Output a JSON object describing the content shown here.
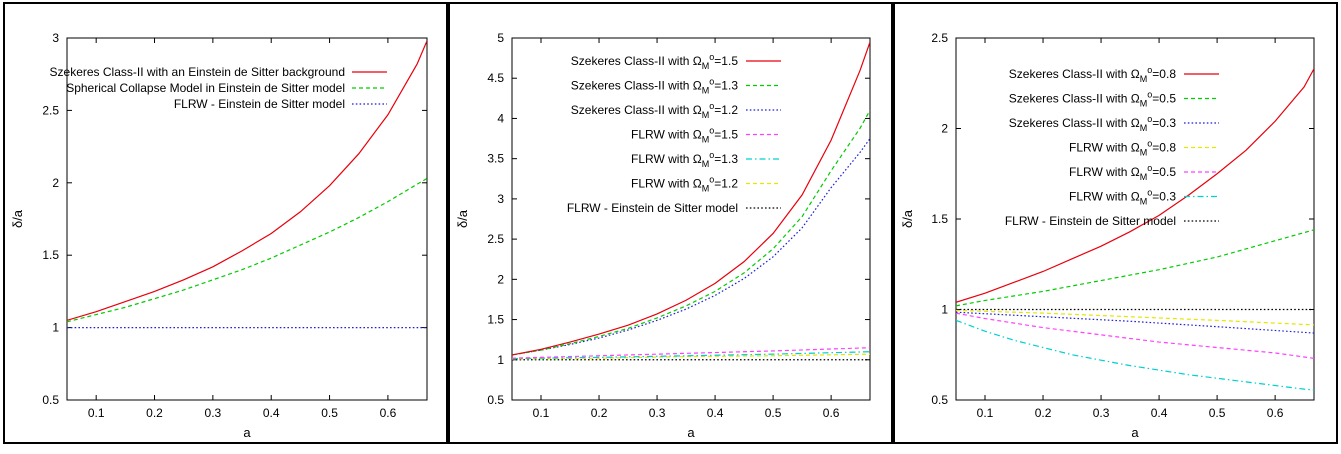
{
  "chart_data": [
    {
      "type": "line",
      "xlabel": "a",
      "ylabel": "δ/a",
      "xlim": [
        0.05,
        0.667
      ],
      "ylim": [
        0.5,
        3
      ],
      "xticks": [
        "0.1",
        "0.2",
        "0.3",
        "0.4",
        "0.5",
        "0.6"
      ],
      "yticks": [
        "0.5",
        "1",
        "1.5",
        "2",
        "2.5",
        "3"
      ],
      "legend_position": "top-right",
      "series": [
        {
          "name": "Szekeres Class-II with an Einstein de Sitter background",
          "color": "#e8000b",
          "dash": "solid",
          "x": [
            0.05,
            0.1,
            0.15,
            0.2,
            0.25,
            0.3,
            0.35,
            0.4,
            0.45,
            0.5,
            0.55,
            0.6,
            0.65,
            0.667
          ],
          "y": [
            1.05,
            1.11,
            1.18,
            1.25,
            1.33,
            1.42,
            1.53,
            1.65,
            1.8,
            1.98,
            2.2,
            2.47,
            2.82,
            2.98
          ]
        },
        {
          "name": "Spherical Collapse Model in Einstein de Sitter model",
          "color": "#00cc00",
          "dash": "dash",
          "x": [
            0.05,
            0.1,
            0.15,
            0.2,
            0.25,
            0.3,
            0.35,
            0.4,
            0.45,
            0.5,
            0.55,
            0.6,
            0.65,
            0.667
          ],
          "y": [
            1.04,
            1.09,
            1.14,
            1.2,
            1.26,
            1.33,
            1.4,
            1.48,
            1.57,
            1.66,
            1.76,
            1.87,
            1.99,
            2.03
          ]
        },
        {
          "name": "FLRW - Einstein de Sitter model",
          "color": "#1f1fd6",
          "dash": "dot",
          "x": [
            0.05,
            0.667
          ],
          "y": [
            1.0,
            1.0
          ]
        }
      ]
    },
    {
      "type": "line",
      "xlabel": "a",
      "ylabel": "δ/a",
      "xlim": [
        0.05,
        0.667
      ],
      "ylim": [
        0.5,
        5
      ],
      "xticks": [
        "0.1",
        "0.2",
        "0.3",
        "0.4",
        "0.5",
        "0.6"
      ],
      "yticks": [
        "0.5",
        "1",
        "1.5",
        "2",
        "2.5",
        "3",
        "3.5",
        "4",
        "4.5",
        "5"
      ],
      "legend_position": "top-right",
      "series": [
        {
          "name": "Szekeres Class-II with Ω_M^o=1.5",
          "color": "#e8000b",
          "dash": "solid",
          "x": [
            0.05,
            0.1,
            0.15,
            0.2,
            0.25,
            0.3,
            0.35,
            0.4,
            0.45,
            0.5,
            0.55,
            0.6,
            0.65,
            0.667
          ],
          "y": [
            1.06,
            1.13,
            1.22,
            1.32,
            1.43,
            1.57,
            1.74,
            1.95,
            2.22,
            2.57,
            3.05,
            3.73,
            4.6,
            4.95
          ]
        },
        {
          "name": "Szekeres Class-II with Ω_M^o=1.3",
          "color": "#00cc00",
          "dash": "dash",
          "x": [
            0.05,
            0.1,
            0.15,
            0.2,
            0.25,
            0.3,
            0.35,
            0.4,
            0.45,
            0.5,
            0.55,
            0.6,
            0.65,
            0.667
          ],
          "y": [
            1.06,
            1.12,
            1.2,
            1.29,
            1.39,
            1.52,
            1.67,
            1.85,
            2.08,
            2.38,
            2.78,
            3.35,
            3.88,
            4.1
          ]
        },
        {
          "name": "Szekeres Class-II with Ω_M^o=1.2",
          "color": "#1f1fd6",
          "dash": "dot",
          "x": [
            0.05,
            0.1,
            0.15,
            0.2,
            0.25,
            0.3,
            0.35,
            0.4,
            0.45,
            0.5,
            0.55,
            0.6,
            0.65,
            0.667
          ],
          "y": [
            1.06,
            1.12,
            1.19,
            1.27,
            1.37,
            1.49,
            1.63,
            1.8,
            2.01,
            2.28,
            2.64,
            3.14,
            3.58,
            3.75
          ]
        },
        {
          "name": "FLRW with Ω_M^o=1.5",
          "color": "#ff40ff",
          "dash": "dash",
          "x": [
            0.05,
            0.2,
            0.35,
            0.5,
            0.667
          ],
          "y": [
            1.02,
            1.05,
            1.08,
            1.11,
            1.15
          ]
        },
        {
          "name": "FLRW with Ω_M^o=1.3",
          "color": "#00d0d0",
          "dash": "dashdot",
          "x": [
            0.05,
            0.2,
            0.35,
            0.5,
            0.667
          ],
          "y": [
            1.015,
            1.03,
            1.05,
            1.07,
            1.1
          ]
        },
        {
          "name": "FLRW with Ω_M^o=1.2",
          "color": "#e6e600",
          "dash": "dash",
          "x": [
            0.05,
            0.2,
            0.35,
            0.5,
            0.667
          ],
          "y": [
            1.01,
            1.02,
            1.04,
            1.05,
            1.07
          ]
        },
        {
          "name": "FLRW - Einstein de Sitter model",
          "color": "#000000",
          "dash": "dot",
          "x": [
            0.05,
            0.667
          ],
          "y": [
            1.0,
            1.0
          ]
        }
      ]
    },
    {
      "type": "line",
      "xlabel": "a",
      "ylabel": "δ/a",
      "xlim": [
        0.05,
        0.667
      ],
      "ylim": [
        0.5,
        2.5
      ],
      "xticks": [
        "0.1",
        "0.2",
        "0.3",
        "0.4",
        "0.5",
        "0.6"
      ],
      "yticks": [
        "0.5",
        "1",
        "1.5",
        "2",
        "2.5"
      ],
      "legend_position": "top-right",
      "series": [
        {
          "name": "Szekeres Class-II with Ω_M^o=0.8",
          "color": "#e8000b",
          "dash": "solid",
          "x": [
            0.05,
            0.1,
            0.15,
            0.2,
            0.25,
            0.3,
            0.35,
            0.4,
            0.45,
            0.5,
            0.55,
            0.6,
            0.65,
            0.667
          ],
          "y": [
            1.04,
            1.09,
            1.15,
            1.21,
            1.28,
            1.35,
            1.43,
            1.52,
            1.63,
            1.75,
            1.88,
            2.04,
            2.23,
            2.33
          ]
        },
        {
          "name": "Szekeres Class-II with Ω_M^o=0.5",
          "color": "#00cc00",
          "dash": "dash",
          "x": [
            0.05,
            0.1,
            0.2,
            0.3,
            0.4,
            0.5,
            0.6,
            0.667
          ],
          "y": [
            1.02,
            1.05,
            1.1,
            1.16,
            1.22,
            1.29,
            1.38,
            1.44
          ]
        },
        {
          "name": "Szekeres Class-II with Ω_M^o=0.3",
          "color": "#1f1fd6",
          "dash": "dot",
          "x": [
            0.05,
            0.2,
            0.35,
            0.5,
            0.667
          ],
          "y": [
            0.985,
            0.96,
            0.935,
            0.905,
            0.87
          ]
        },
        {
          "name": "FLRW with Ω_M^o=0.8",
          "color": "#e6e600",
          "dash": "dash",
          "x": [
            0.05,
            0.2,
            0.35,
            0.5,
            0.667
          ],
          "y": [
            0.995,
            0.98,
            0.96,
            0.94,
            0.915
          ]
        },
        {
          "name": "FLRW with Ω_M^o=0.5",
          "color": "#ff40ff",
          "dash": "dash",
          "x": [
            0.05,
            0.1,
            0.2,
            0.3,
            0.4,
            0.5,
            0.6,
            0.667
          ],
          "y": [
            0.98,
            0.95,
            0.9,
            0.86,
            0.82,
            0.79,
            0.76,
            0.73
          ]
        },
        {
          "name": "FLRW with Ω_M^o=0.3",
          "color": "#00d0d0",
          "dash": "dashdot",
          "x": [
            0.05,
            0.1,
            0.15,
            0.2,
            0.25,
            0.3,
            0.35,
            0.4,
            0.45,
            0.5,
            0.55,
            0.6,
            0.65,
            0.667
          ],
          "y": [
            0.94,
            0.88,
            0.83,
            0.79,
            0.75,
            0.72,
            0.69,
            0.665,
            0.64,
            0.62,
            0.6,
            0.58,
            0.56,
            0.555
          ]
        },
        {
          "name": "FLRW - Einstein de Sitter model",
          "color": "#000000",
          "dash": "dot",
          "x": [
            0.05,
            0.667
          ],
          "y": [
            1.0,
            1.0
          ]
        }
      ]
    }
  ]
}
